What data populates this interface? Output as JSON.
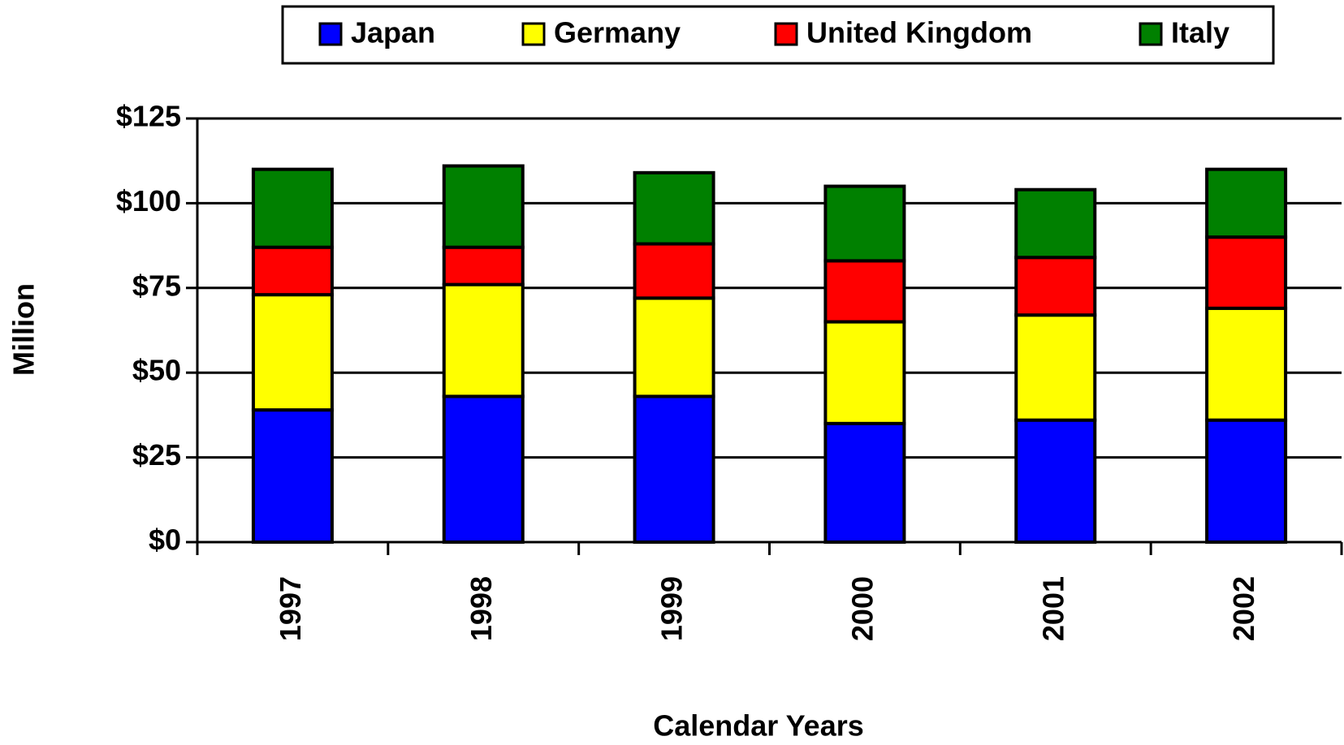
{
  "chart_data": {
    "type": "stacked_bar",
    "xlabel": "Calendar Years",
    "ylabel": "Million",
    "categories": [
      "1997",
      "1998",
      "1999",
      "2000",
      "2001",
      "2002"
    ],
    "series": [
      {
        "name": "Japan",
        "color": "#0000ff",
        "values": [
          39,
          43,
          43,
          35,
          36,
          36
        ]
      },
      {
        "name": "Germany",
        "color": "#ffff00",
        "values": [
          34,
          33,
          29,
          30,
          31,
          33
        ]
      },
      {
        "name": "United Kingdom",
        "color": "#ff0000",
        "values": [
          14,
          11,
          16,
          18,
          17,
          21
        ]
      },
      {
        "name": "Italy",
        "color": "#008000",
        "values": [
          23,
          24,
          21,
          22,
          20,
          20
        ]
      }
    ],
    "ylim": [
      0,
      125
    ],
    "yticks": [
      {
        "value": 0,
        "label": "$0"
      },
      {
        "value": 25,
        "label": "$25"
      },
      {
        "value": 50,
        "label": "$50"
      },
      {
        "value": 75,
        "label": "$75"
      },
      {
        "value": 100,
        "label": "$100"
      },
      {
        "value": 125,
        "label": "$125"
      }
    ],
    "grid": true,
    "legend": "top"
  }
}
